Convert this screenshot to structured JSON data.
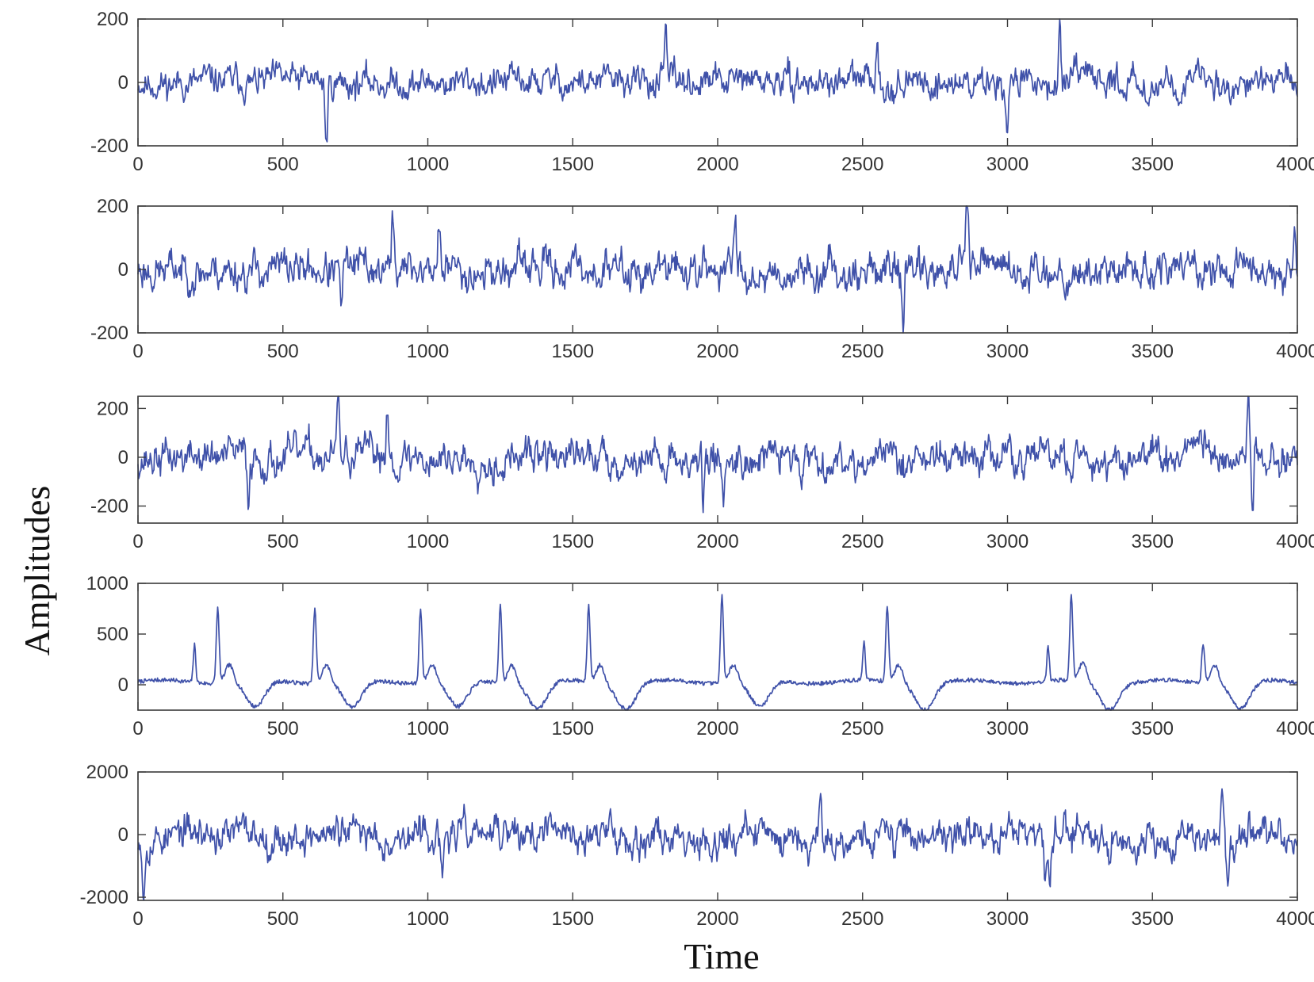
{
  "chart_data": [
    {
      "type": "line",
      "xlim": [
        0,
        4000
      ],
      "ylim": [
        -200,
        200
      ],
      "x_ticks": [
        0,
        500,
        1000,
        1500,
        2000,
        2500,
        3000,
        3500,
        4000
      ],
      "y_ticks": [
        -200,
        0,
        200
      ],
      "x_tick_labels": [
        "0",
        "500",
        "1000",
        "1500",
        "2000",
        "2500",
        "3000",
        "3500",
        "4000"
      ],
      "y_tick_labels": [
        "-200",
        "0",
        "200"
      ],
      "color": "#3F51A9",
      "seed": 11,
      "noise_amp": 45,
      "spikes": [
        [
          650,
          -200
        ],
        [
          1820,
          130
        ],
        [
          2550,
          145
        ],
        [
          3180,
          185
        ],
        [
          3000,
          -135
        ]
      ],
      "series": [
        {
          "x_range": [
            0,
            4000
          ],
          "peak_range": [
            -200,
            185
          ]
        }
      ]
    },
    {
      "type": "line",
      "xlim": [
        0,
        4000
      ],
      "ylim": [
        -200,
        200
      ],
      "x_ticks": [
        0,
        500,
        1000,
        1500,
        2000,
        2500,
        3000,
        3500,
        4000
      ],
      "y_ticks": [
        -200,
        0,
        200
      ],
      "x_tick_labels": [
        "0",
        "500",
        "1000",
        "1500",
        "2000",
        "2500",
        "3000",
        "3500",
        "4000"
      ],
      "y_tick_labels": [
        "-200",
        "0",
        "200"
      ],
      "color": "#3F51A9",
      "seed": 23,
      "noise_amp": 55,
      "spikes": [
        [
          880,
          160
        ],
        [
          1040,
          155
        ],
        [
          2060,
          150
        ],
        [
          2860,
          195
        ],
        [
          2640,
          -145
        ],
        [
          700,
          -135
        ],
        [
          3990,
          155
        ]
      ],
      "series": [
        {
          "x_range": [
            0,
            4000
          ],
          "peak_range": [
            -145,
            195
          ]
        }
      ]
    },
    {
      "type": "line",
      "xlim": [
        0,
        4000
      ],
      "ylim": [
        -270,
        250
      ],
      "x_ticks": [
        0,
        500,
        1000,
        1500,
        2000,
        2500,
        3000,
        3500,
        4000
      ],
      "y_ticks": [
        -200,
        0,
        200
      ],
      "x_tick_labels": [
        "0",
        "500",
        "1000",
        "1500",
        "2000",
        "2500",
        "3000",
        "3500",
        "4000"
      ],
      "y_tick_labels": [
        "-200",
        "0",
        "200"
      ],
      "color": "#3F51A9",
      "seed": 37,
      "noise_amp": 70,
      "spikes": [
        [
          690,
          250
        ],
        [
          860,
          220
        ],
        [
          1950,
          -225
        ],
        [
          2020,
          -195
        ],
        [
          3830,
          250
        ],
        [
          3845,
          -270
        ],
        [
          380,
          -190
        ]
      ],
      "series": [
        {
          "x_range": [
            0,
            4000
          ],
          "peak_range": [
            -270,
            250
          ]
        }
      ]
    },
    {
      "type": "line",
      "xlim": [
        0,
        4000
      ],
      "ylim": [
        -250,
        1000
      ],
      "x_ticks": [
        0,
        500,
        1000,
        1500,
        2000,
        2500,
        3000,
        3500,
        4000
      ],
      "y_ticks": [
        0,
        500,
        1000
      ],
      "x_tick_labels": [
        "0",
        "500",
        "1000",
        "1500",
        "2000",
        "2500",
        "3000",
        "3500",
        "4000"
      ],
      "y_tick_labels": [
        "0",
        "500",
        "1000"
      ],
      "color": "#3F51A9",
      "beats": [
        {
          "t": 275,
          "peak": 740,
          "pre": 370
        },
        {
          "t": 610,
          "peak": 740,
          "pre": 0
        },
        {
          "t": 975,
          "peak": 740,
          "pre": 0
        },
        {
          "t": 1250,
          "peak": 780,
          "pre": 0
        },
        {
          "t": 1555,
          "peak": 740,
          "pre": 0
        },
        {
          "t": 2015,
          "peak": 870,
          "pre": 0
        },
        {
          "t": 2585,
          "peak": 750,
          "pre": 390
        },
        {
          "t": 3220,
          "peak": 850,
          "pre": 340
        },
        {
          "t": 3675,
          "peak": 390,
          "pre": 0
        }
      ],
      "series": [
        {
          "x_range": [
            0,
            4000
          ],
          "peak_range": [
            -250,
            870
          ]
        }
      ]
    },
    {
      "type": "line",
      "xlim": [
        0,
        4000
      ],
      "ylim": [
        -2100,
        2000
      ],
      "x_ticks": [
        0,
        500,
        1000,
        1500,
        2000,
        2500,
        3000,
        3500,
        4000
      ],
      "y_ticks": [
        -2000,
        0,
        2000
      ],
      "x_tick_labels": [
        "0",
        "500",
        "1000",
        "1500",
        "2000",
        "2500",
        "3000",
        "3500",
        "4000"
      ],
      "y_tick_labels": [
        "-2000",
        "0",
        "2000"
      ],
      "color": "#3F51A9",
      "seed": 53,
      "noise_amp": 520,
      "spikes": [
        [
          20,
          -1800
        ],
        [
          2355,
          1300
        ],
        [
          3130,
          -1750
        ],
        [
          3145,
          -1700
        ],
        [
          3760,
          -1800
        ],
        [
          1050,
          -1800
        ],
        [
          3740,
          1250
        ]
      ],
      "series": [
        {
          "x_range": [
            0,
            4000
          ],
          "peak_range": [
            -1800,
            1300
          ]
        }
      ]
    }
  ],
  "xlabel": "Time",
  "ylabel": "Amplitudes"
}
